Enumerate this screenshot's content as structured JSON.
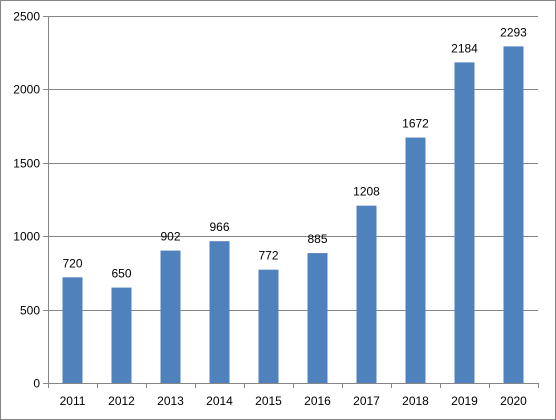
{
  "chart_data": {
    "type": "bar",
    "title": "",
    "xlabel": "",
    "ylabel": "",
    "categories": [
      "2011",
      "2012",
      "2013",
      "2014",
      "2015",
      "2016",
      "2017",
      "2018",
      "2019",
      "2020"
    ],
    "values": [
      720,
      650,
      902,
      966,
      772,
      885,
      1208,
      1672,
      2184,
      2293
    ],
    "data_labels": [
      "720",
      "650",
      "902",
      "966",
      "772",
      "885",
      "1208",
      "1672",
      "2184",
      "2293"
    ],
    "ylim": [
      0,
      2500
    ],
    "yticks": [
      0,
      500,
      1000,
      1500,
      2000,
      2500
    ],
    "ytick_labels": [
      "0",
      "500",
      "1000",
      "1500",
      "2000",
      "2500"
    ],
    "grid": true,
    "legend": "none",
    "colors": {
      "bar": "#4F81BD",
      "grid": "#868686",
      "axis": "#868686",
      "frame": "#868686"
    }
  }
}
